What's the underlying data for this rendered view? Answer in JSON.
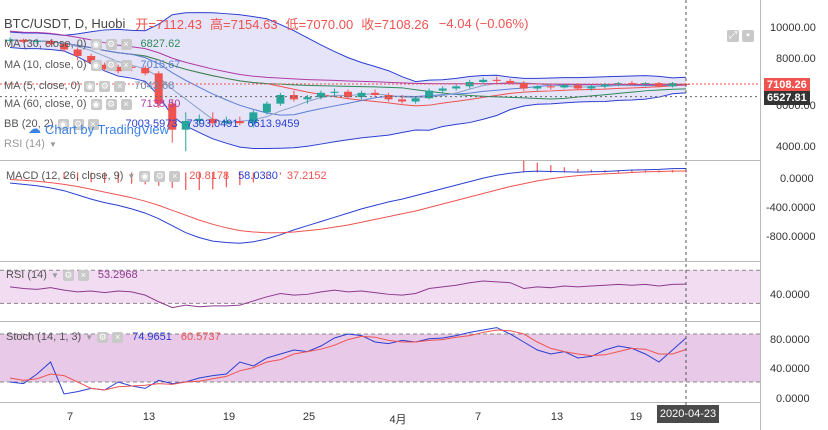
{
  "header": {
    "symbol": "BTC/USDT, D, Huobi",
    "open_label": "开=7112.43",
    "high_label": "高=7154.63",
    "low_label": "低=7070.00",
    "close_label": "收=7108.26",
    "change_label": "−4.04 (−0.06%)"
  },
  "indicators": {
    "ma30": {
      "name": "MA (30, close, 0)",
      "value": "6827.62",
      "color": "#2e8b57"
    },
    "ma10": {
      "name": "MA (10, close, 0)",
      "value": "7015.67",
      "color": "#5b7fd6"
    },
    "ma5": {
      "name": "MA (5, close, 0)",
      "value": "7043.68",
      "color": "#8aa2c8"
    },
    "ma60": {
      "name": "MA (60, close, 0)",
      "value": "7138.50",
      "color": "#b03aa6"
    },
    "bb": {
      "name": "BB (20, 2)",
      "value1": "7003.5973",
      "value2": "7393.0491",
      "value3": "6613.9459",
      "color": "#2a3fd1"
    },
    "rsi_collapsed": {
      "name": "RSI (14)"
    },
    "macd": {
      "name": "MACD (12, 26, close, 9)",
      "value1": "20.8178",
      "value2": "58.0330",
      "value3": "37.2152"
    },
    "rsi": {
      "name": "RSI (14)",
      "value": "53.2968"
    },
    "stoch": {
      "name": "Stoch (14, 1, 3)",
      "value1": "74.9651",
      "value2": "60.5737"
    }
  },
  "watermark": "Chart by TradingView",
  "yaxis": {
    "main": [
      "10000.00",
      "8000.00",
      "6000.00",
      "4000.00"
    ],
    "macd": [
      "0.0000",
      "-400.0000",
      "-800.0000"
    ],
    "rsi": [
      "40.0000"
    ],
    "stoch": [
      "80.0000",
      "40.0000",
      "0.0000"
    ]
  },
  "price_tags": {
    "last": "7108.26",
    "ma": "6527.81",
    "last_color": "#ef5350",
    "ma_color": "#333333"
  },
  "xaxis": [
    "7",
    "13",
    "19",
    "25",
    "4月",
    "7",
    "13",
    "19"
  ],
  "date_tag": "2020-04-23",
  "colors": {
    "up": "#26a69a",
    "down": "#ef5350",
    "bb_fill": "#dcd9f5",
    "rsi_band": "#f1dcf1",
    "stoch_band": "#e8c9e8"
  },
  "chart_data": [
    {
      "type": "candlestick",
      "title": "BTC/USDT, D, Huobi",
      "ylim": [
        3600,
        10800
      ],
      "ohlc": [
        [
          9100,
          9250,
          9000,
          9150
        ],
        [
          9150,
          9200,
          9000,
          9050
        ],
        [
          9050,
          9200,
          8950,
          9100
        ],
        [
          9100,
          9150,
          8900,
          8950
        ],
        [
          8950,
          9050,
          8600,
          8700
        ],
        [
          8700,
          8800,
          8200,
          8400
        ],
        [
          8400,
          8500,
          8000,
          8100
        ],
        [
          8000,
          8100,
          7700,
          7800
        ],
        [
          7900,
          8000,
          7600,
          7700
        ],
        [
          7900,
          8000,
          7700,
          7850
        ],
        [
          7850,
          7950,
          7500,
          7600
        ],
        [
          7600,
          7700,
          6000,
          6200
        ],
        [
          6200,
          6400,
          4400,
          5000
        ],
        [
          5000,
          5800,
          4000,
          5400
        ],
        [
          5400,
          5700,
          5200,
          5500
        ],
        [
          5500,
          5800,
          5100,
          5300
        ],
        [
          5300,
          5600,
          5200,
          5400
        ],
        [
          5400,
          5600,
          5200,
          5300
        ],
        [
          5300,
          5900,
          5100,
          5800
        ],
        [
          5800,
          6300,
          5700,
          6200
        ],
        [
          6200,
          6700,
          6100,
          6600
        ],
        [
          6600,
          6800,
          6300,
          6400
        ],
        [
          6400,
          6600,
          6200,
          6500
        ],
        [
          6500,
          6800,
          6400,
          6700
        ],
        [
          6700,
          6900,
          6500,
          6750
        ],
        [
          6750,
          6850,
          6400,
          6500
        ],
        [
          6500,
          6800,
          6400,
          6700
        ],
        [
          6700,
          6850,
          6500,
          6600
        ],
        [
          6600,
          6700,
          6300,
          6400
        ],
        [
          6400,
          6600,
          6200,
          6300
        ],
        [
          6300,
          6500,
          6200,
          6450
        ],
        [
          6450,
          6900,
          6400,
          6800
        ],
        [
          6800,
          7000,
          6700,
          6900
        ],
        [
          6900,
          7100,
          6800,
          7000
        ],
        [
          7000,
          7300,
          6900,
          7200
        ],
        [
          7200,
          7400,
          7100,
          7300
        ],
        [
          7300,
          7450,
          7100,
          7250
        ],
        [
          7250,
          7350,
          7100,
          7150
        ],
        [
          7150,
          7250,
          6800,
          6900
        ],
        [
          6900,
          7050,
          6800,
          7000
        ],
        [
          7000,
          7100,
          6850,
          6950
        ],
        [
          6950,
          7100,
          6900,
          7050
        ],
        [
          7050,
          7150,
          6850,
          6900
        ],
        [
          6900,
          7050,
          6800,
          7000
        ],
        [
          7000,
          7150,
          6900,
          7100
        ],
        [
          7100,
          7200,
          7000,
          7150
        ],
        [
          7150,
          7250,
          7050,
          7100
        ],
        [
          7100,
          7200,
          7000,
          7150
        ],
        [
          7150,
          7200,
          6950,
          7000
        ],
        [
          7000,
          7200,
          6950,
          7150
        ],
        [
          7112.43,
          7154.63,
          7070,
          7108.26
        ]
      ]
    },
    {
      "type": "line",
      "title": "MACD (12, 26, close, 9)",
      "ylim": [
        -1250,
        150
      ],
      "series": [
        {
          "name": "MACD",
          "values": [
            -150,
            -170,
            -190,
            -220,
            -260,
            -320,
            -380,
            -430,
            -470,
            -520,
            -580,
            -660,
            -760,
            -860,
            -930,
            -980,
            -1000,
            -1010,
            -990,
            -950,
            -890,
            -820,
            -760,
            -700,
            -640,
            -580,
            -520,
            -470,
            -420,
            -380,
            -330,
            -280,
            -230,
            -180,
            -130,
            -80,
            -40,
            -10,
            10,
            20,
            15,
            10,
            5,
            10,
            15,
            25,
            35,
            40,
            45,
            55,
            58
          ]
        },
        {
          "name": "Signal",
          "values": [
            -100,
            -110,
            -125,
            -145,
            -170,
            -200,
            -240,
            -280,
            -320,
            -360,
            -410,
            -470,
            -540,
            -610,
            -680,
            -740,
            -790,
            -830,
            -850,
            -860,
            -860,
            -850,
            -830,
            -810,
            -780,
            -750,
            -710,
            -670,
            -630,
            -590,
            -550,
            -500,
            -450,
            -400,
            -350,
            -300,
            -250,
            -200,
            -160,
            -120,
            -90,
            -65,
            -45,
            -30,
            -20,
            -10,
            0,
            10,
            15,
            20,
            21
          ]
        },
        {
          "name": "Histogram",
          "values": [
            -50,
            -60,
            -65,
            -75,
            -90,
            -120,
            -140,
            -150,
            -150,
            -160,
            -170,
            -190,
            -220,
            -250,
            -250,
            -240,
            -210,
            -180,
            -140,
            -90,
            -30,
            30,
            70,
            110,
            140,
            170,
            190,
            200,
            210,
            210,
            220,
            220,
            220,
            220,
            220,
            220,
            210,
            190,
            170,
            140,
            105,
            75,
            50,
            40,
            35,
            35,
            35,
            30,
            30,
            35,
            37
          ]
        }
      ]
    },
    {
      "type": "line",
      "title": "RSI (14)",
      "ylim": [
        10,
        80
      ],
      "series": [
        {
          "name": "RSI",
          "values": [
            50,
            48,
            47,
            49,
            46,
            44,
            45,
            43,
            45,
            44,
            40,
            32,
            25,
            28,
            26,
            27,
            27,
            28,
            33,
            38,
            42,
            40,
            41,
            44,
            46,
            44,
            45,
            43,
            41,
            40,
            42,
            48,
            50,
            52,
            55,
            57,
            56,
            55,
            48,
            50,
            49,
            51,
            50,
            51,
            52,
            53,
            52,
            53,
            51,
            53,
            53.3
          ]
        }
      ]
    },
    {
      "type": "line",
      "title": "Stoch (14, 1, 3)",
      "ylim": [
        -5,
        95
      ],
      "series": [
        {
          "name": "%K",
          "values": [
            20,
            18,
            30,
            45,
            5,
            8,
            12,
            10,
            20,
            15,
            12,
            22,
            18,
            20,
            25,
            28,
            30,
            45,
            40,
            50,
            55,
            60,
            58,
            65,
            75,
            80,
            78,
            70,
            68,
            72,
            70,
            74,
            75,
            78,
            82,
            85,
            88,
            80,
            70,
            60,
            55,
            58,
            50,
            52,
            60,
            65,
            62,
            55,
            45,
            60,
            75
          ]
        },
        {
          "name": "%D",
          "values": [
            25,
            22,
            24,
            30,
            28,
            20,
            12,
            10,
            14,
            15,
            16,
            18,
            17,
            20,
            21,
            24,
            27,
            34,
            38,
            45,
            48,
            55,
            58,
            61,
            66,
            73,
            77,
            76,
            72,
            70,
            70,
            72,
            73,
            76,
            78,
            82,
            85,
            84,
            80,
            70,
            62,
            58,
            55,
            53,
            54,
            58,
            62,
            61,
            55,
            55,
            60.6
          ]
        }
      ]
    }
  ]
}
